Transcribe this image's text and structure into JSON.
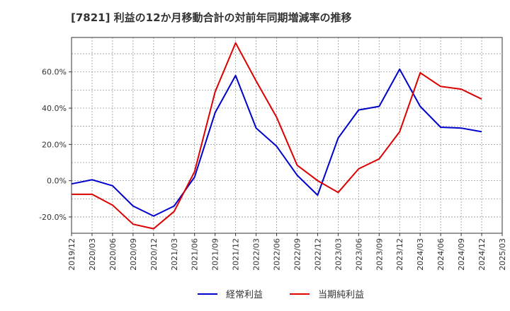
{
  "chart_data": {
    "type": "line",
    "title": "[7821]  利益の12か月移動合計の対前年同期増減率の推移",
    "xlabel": "",
    "ylabel": "",
    "x": [
      "2019/12",
      "2020/03",
      "2020/06",
      "2020/09",
      "2020/12",
      "2021/03",
      "2021/06",
      "2021/09",
      "2021/12",
      "2022/03",
      "2022/06",
      "2022/09",
      "2022/12",
      "2023/03",
      "2023/06",
      "2023/09",
      "2023/12",
      "2024/03",
      "2024/06",
      "2024/09",
      "2024/12",
      "2025/03"
    ],
    "yticks": [
      -20,
      0,
      20,
      40,
      60
    ],
    "ytick_labels": [
      "-20.0%",
      "0.0%",
      "20.0%",
      "40.0%",
      "60.0%"
    ],
    "ylim": [
      -29,
      79
    ],
    "grid": true,
    "legend_position": "bottom-center",
    "series": [
      {
        "name": "経常利益",
        "color": "#0000cc",
        "values": [
          -1.8,
          0.5,
          -2.8,
          -14,
          -19.5,
          -14,
          2,
          37.5,
          58,
          29,
          19,
          3,
          -8,
          23.5,
          39,
          41,
          61.5,
          41,
          29.5,
          29,
          27,
          null
        ]
      },
      {
        "name": "当期純利益",
        "color": "#dd0000",
        "values": [
          -7.5,
          -7.5,
          -13.5,
          -24,
          -26.5,
          -17,
          5,
          49,
          76,
          55,
          35,
          8.5,
          0,
          -6.5,
          6.5,
          12,
          27,
          59.5,
          52,
          50.5,
          45,
          null
        ]
      }
    ]
  }
}
